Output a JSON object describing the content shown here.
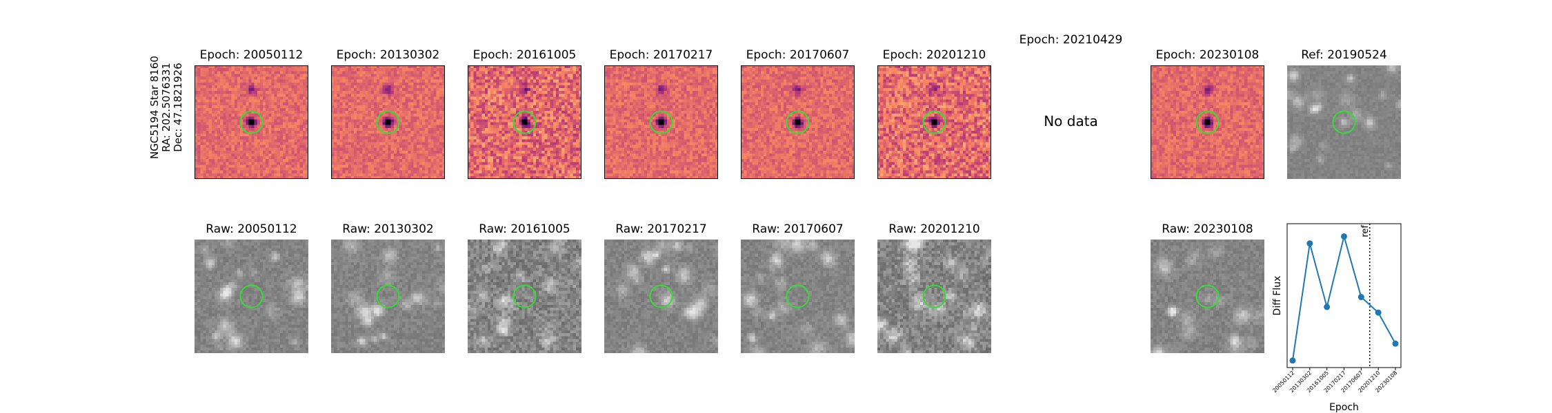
{
  "target": {
    "name": "NGC5194 Star 8160",
    "ra": "RA: 202.5076331",
    "dec": "Dec: 47.1821926"
  },
  "diff_panels": [
    {
      "title": "Epoch: 20050112",
      "type": "diff"
    },
    {
      "title": "Epoch: 20130302",
      "type": "diff"
    },
    {
      "title": "Epoch: 20161005",
      "type": "diff"
    },
    {
      "title": "Epoch: 20170217",
      "type": "diff"
    },
    {
      "title": "Epoch: 20170607",
      "type": "diff"
    },
    {
      "title": "Epoch: 20201210",
      "type": "diff"
    },
    {
      "title": "Epoch: 20210429",
      "type": "nodata",
      "message": "No data"
    },
    {
      "title": "Epoch: 20230108",
      "type": "diff"
    },
    {
      "title": "Ref: 20190524",
      "type": "ref"
    }
  ],
  "raw_panels": [
    {
      "title": "Raw: 20050112"
    },
    {
      "title": "Raw: 20130302"
    },
    {
      "title": "Raw: 20161005"
    },
    {
      "title": "Raw: 20170217"
    },
    {
      "title": "Raw: 20170607"
    },
    {
      "title": "Raw: 20201210"
    },
    {
      "title": ""
    },
    {
      "title": "Raw: 20230108"
    }
  ],
  "colors": {
    "circle": "#33dd33",
    "line": "#1f77b4",
    "frame": "#000000"
  },
  "chart_data": {
    "type": "line",
    "title": "",
    "xlabel": "Epoch",
    "ylabel": "Diff Flux",
    "x": [
      "20050112",
      "20130302",
      "20161005",
      "20170217",
      "20170607",
      "20201210",
      "20230108"
    ],
    "y": [
      0.05,
      0.88,
      0.43,
      0.93,
      0.5,
      0.39,
      0.17
    ],
    "ylim": [
      0,
      1.02
    ],
    "y_ticks_shown": false,
    "reference": {
      "label": "ref",
      "x_position_between": [
        "20170607",
        "20201210"
      ],
      "style": "dotted"
    },
    "grid": false
  }
}
